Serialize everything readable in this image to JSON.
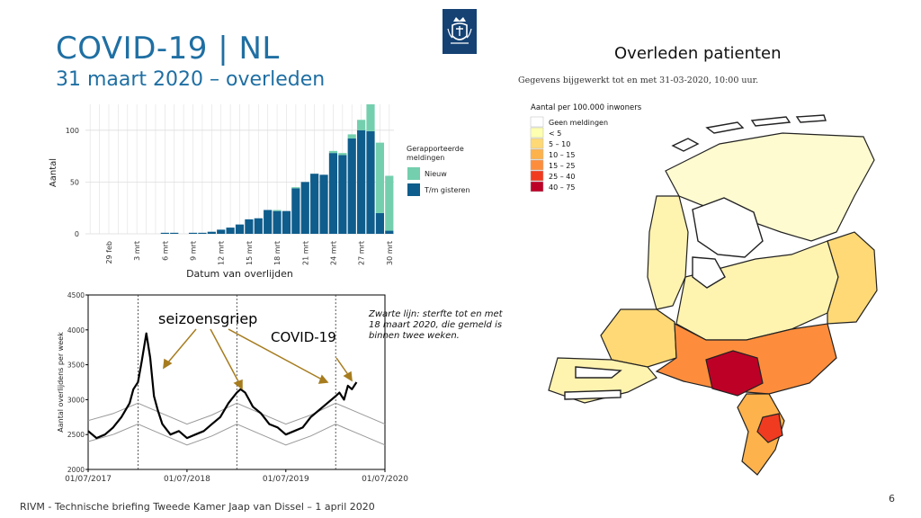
{
  "slide": {
    "title": "COVID-19 | NL",
    "subtitle": "31 maart 2020 – overleden",
    "footer": "RIVM - Technische briefing Tweede Kamer Jaap van Dissel – 1 april 2020",
    "page_number": "6",
    "colors": {
      "title_blue": "#1f6fa3",
      "logo_blue": "#154273"
    },
    "logo_icon": "rijksoverheid-crest-icon"
  },
  "map": {
    "title": "Overleden patienten",
    "updated": "Gegevens bijgewerkt tot en met 31-03-2020, 10:00 uur.",
    "legend_title": "Aantal per 100.000 inwoners",
    "legend": [
      {
        "label": "Geen meldingen",
        "color": "#ffffff"
      },
      {
        "label": "< 5",
        "color": "#ffffb2"
      },
      {
        "label": "5 – 10",
        "color": "#fed976"
      },
      {
        "label": "10 – 15",
        "color": "#feb24c"
      },
      {
        "label": "15 – 25",
        "color": "#fd8d3c"
      },
      {
        "label": "25 – 40",
        "color": "#f03b20"
      },
      {
        "label": "40 – 75",
        "color": "#bd0026"
      }
    ]
  },
  "annotations": {
    "seizoensgriep": "seizoensgriep",
    "covid": "COVID-19",
    "note": "Zwarte lijn: sterfte tot en met 18 maart 2020, die gemeld is binnen twee weken."
  },
  "chart_data": [
    {
      "type": "bar",
      "stacked": true,
      "xlabel": "Datum van overlijden",
      "ylabel": "Aantal",
      "ylim": [
        0,
        125
      ],
      "yticks": [
        0,
        50,
        100
      ],
      "categories": [
        "27 feb",
        "28 feb",
        "29 feb",
        "1 mrt",
        "2 mrt",
        "3 mrt",
        "4 mrt",
        "5 mrt",
        "6 mrt",
        "7 mrt",
        "8 mrt",
        "9 mrt",
        "10 mrt",
        "11 mrt",
        "12 mrt",
        "13 mrt",
        "14 mrt",
        "15 mrt",
        "16 mrt",
        "17 mrt",
        "18 mrt",
        "19 mrt",
        "20 mrt",
        "21 mrt",
        "22 mrt",
        "23 mrt",
        "24 mrt",
        "25 mrt",
        "26 mrt",
        "27 mrt",
        "28 mrt",
        "29 mrt",
        "30 mrt"
      ],
      "xtick_labels": [
        "29 feb",
        "3 mrt",
        "6 mrt",
        "9 mrt",
        "12 mrt",
        "15 mrt",
        "18 mrt",
        "21 mrt",
        "24 mrt",
        "27 mrt",
        "30 mrt"
      ],
      "legend_title": "Gerapporteerde meldingen",
      "legend_position": "right",
      "series": [
        {
          "name": "T/m gisteren",
          "color": "#0f5d8c",
          "values": [
            0,
            0,
            0,
            0,
            0,
            0,
            0,
            0,
            1,
            1,
            0,
            1,
            1,
            2,
            4,
            6,
            9,
            14,
            15,
            23,
            22,
            22,
            44,
            50,
            58,
            57,
            78,
            76,
            92,
            100,
            99,
            20,
            3
          ]
        },
        {
          "name": "Nieuw",
          "color": "#74cfae",
          "values": [
            0,
            0,
            0,
            0,
            0,
            0,
            0,
            0,
            0,
            0,
            0,
            0,
            0,
            0,
            0,
            0,
            0,
            0,
            0,
            0,
            1,
            0,
            1,
            0,
            0,
            0,
            2,
            2,
            4,
            10,
            26,
            68,
            53
          ]
        }
      ]
    },
    {
      "type": "line",
      "ylabel": "Aantal overlijdens per week",
      "ylim": [
        2000,
        4500
      ],
      "yticks": [
        2000,
        2500,
        3000,
        3500,
        4000,
        4500
      ],
      "xticks": [
        "01/07/2017",
        "01/07/2018",
        "01/07/2019",
        "01/07/2020"
      ],
      "xlim": [
        "2017-07-01",
        "2020-07-01"
      ],
      "vlines": [
        "2018-01-01",
        "2019-01-01",
        "2020-01-01"
      ],
      "series": [
        {
          "name": "",
          "color": "#000000",
          "x": [
            "2017-07-01",
            "2017-08-01",
            "2017-09-01",
            "2017-10-01",
            "2017-11-01",
            "2017-12-01",
            "2017-12-15",
            "2018-01-01",
            "2018-01-15",
            "2018-02-01",
            "2018-02-15",
            "2018-03-01",
            "2018-03-15",
            "2018-04-01",
            "2018-05-01",
            "2018-06-01",
            "2018-07-01",
            "2018-08-01",
            "2018-09-01",
            "2018-10-01",
            "2018-11-01",
            "2018-12-01",
            "2019-01-01",
            "2019-01-15",
            "2019-02-01",
            "2019-02-15",
            "2019-03-01",
            "2019-04-01",
            "2019-05-01",
            "2019-06-01",
            "2019-07-01",
            "2019-08-01",
            "2019-09-01",
            "2019-10-01",
            "2019-11-01",
            "2019-12-01",
            "2020-01-01",
            "2020-01-15",
            "2020-02-01",
            "2020-02-15",
            "2020-03-01",
            "2020-03-18"
          ],
          "y": [
            2550,
            2450,
            2500,
            2600,
            2750,
            2950,
            3150,
            3250,
            3550,
            3950,
            3600,
            3050,
            2850,
            2650,
            2500,
            2550,
            2450,
            2500,
            2550,
            2650,
            2750,
            2950,
            3100,
            3150,
            3100,
            3000,
            2900,
            2800,
            2650,
            2600,
            2500,
            2550,
            2600,
            2750,
            2850,
            2950,
            3050,
            3100,
            3000,
            3200,
            3150,
            3250
          ]
        },
        {
          "name": "",
          "color": "#999999",
          "x": [
            "2017-07-01",
            "2017-10-01",
            "2018-01-01",
            "2018-04-01",
            "2018-07-01",
            "2018-10-01",
            "2019-01-01",
            "2019-04-01",
            "2019-07-01",
            "2019-10-01",
            "2020-01-01",
            "2020-04-01",
            "2020-07-01"
          ],
          "y": [
            2700,
            2800,
            2950,
            2800,
            2650,
            2780,
            2950,
            2800,
            2650,
            2780,
            2950,
            2800,
            2650
          ]
        },
        {
          "name": "",
          "color": "#999999",
          "x": [
            "2017-07-01",
            "2017-10-01",
            "2018-01-01",
            "2018-04-01",
            "2018-07-01",
            "2018-10-01",
            "2019-01-01",
            "2019-04-01",
            "2019-07-01",
            "2019-10-01",
            "2020-01-01",
            "2020-04-01",
            "2020-07-01"
          ],
          "y": [
            2400,
            2500,
            2650,
            2500,
            2350,
            2480,
            2650,
            2500,
            2350,
            2480,
            2650,
            2500,
            2350
          ]
        }
      ]
    }
  ]
}
